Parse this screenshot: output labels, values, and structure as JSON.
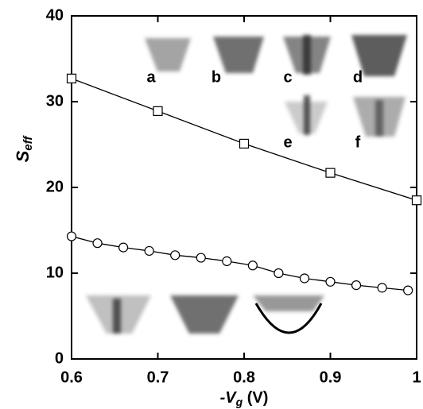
{
  "chart_data": {
    "type": "line",
    "x_label": {
      "main": "-V",
      "sub": "g",
      "rest": " (V)"
    },
    "y_label": {
      "main": "S",
      "sub": "eff"
    },
    "series": [
      {
        "marker": "square",
        "color": "#000000",
        "x": [
          0.6,
          0.7,
          0.8,
          0.9,
          1.0
        ],
        "values": [
          32.7,
          28.9,
          25.1,
          21.7,
          18.5
        ]
      },
      {
        "marker": "circle",
        "color": "#000000",
        "x": [
          0.6,
          0.63,
          0.66,
          0.69,
          0.72,
          0.75,
          0.78,
          0.81,
          0.84,
          0.87,
          0.9,
          0.93,
          0.96,
          0.99
        ],
        "values": [
          14.3,
          13.5,
          13.0,
          12.6,
          12.1,
          11.8,
          11.4,
          10.9,
          10.0,
          9.4,
          9.0,
          8.6,
          8.3,
          8.0
        ]
      }
    ],
    "xlim": [
      0.6,
      1.0
    ],
    "xticks": [
      0.6,
      0.7,
      0.8,
      0.9,
      1
    ],
    "ylim": [
      0,
      40
    ],
    "yticks": [
      0,
      10,
      20,
      30,
      40
    ],
    "annotations": [
      "a",
      "b",
      "c",
      "d",
      "e",
      "f"
    ]
  }
}
